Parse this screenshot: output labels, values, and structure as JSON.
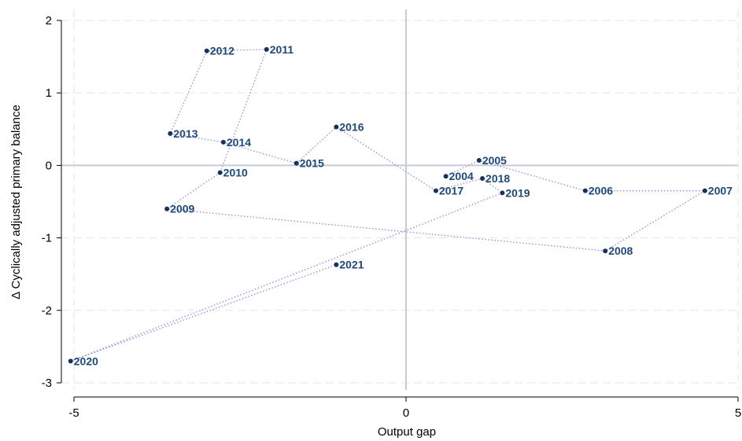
{
  "chart_data": {
    "type": "scatter",
    "connected": true,
    "title": "",
    "xlabel": "Output gap",
    "ylabel": "Δ Cyclically adjusted primary balance",
    "xlim": [
      -5,
      5
    ],
    "ylim": [
      -3,
      2
    ],
    "xticks": [
      -5,
      0,
      5
    ],
    "xtick_labels": [
      "-5",
      "0",
      "5"
    ],
    "yticks": [
      -3,
      -2,
      -1,
      0,
      1,
      2
    ],
    "ytick_labels": [
      "-3",
      "-2",
      "-1",
      "0",
      "1",
      "2"
    ],
    "grid": true,
    "reference_lines": {
      "x": 0,
      "y": 0
    },
    "colors": {
      "marker": "#1a2f5a",
      "label": "#1e4a7a",
      "connector": "#8c8ce6",
      "grid": "#e6e6e6",
      "reference": "#c5cdd9"
    },
    "points": [
      {
        "label": "2004",
        "x": 0.6,
        "y": -0.15
      },
      {
        "label": "2005",
        "x": 1.1,
        "y": 0.07
      },
      {
        "label": "2006",
        "x": 2.7,
        "y": -0.35
      },
      {
        "label": "2007",
        "x": 4.5,
        "y": -0.35
      },
      {
        "label": "2008",
        "x": 3.0,
        "y": -1.18
      },
      {
        "label": "2009",
        "x": -3.6,
        "y": -0.6
      },
      {
        "label": "2010",
        "x": -2.8,
        "y": -0.1
      },
      {
        "label": "2011",
        "x": -2.1,
        "y": 1.6
      },
      {
        "label": "2012",
        "x": -3.0,
        "y": 1.58
      },
      {
        "label": "2013",
        "x": -3.55,
        "y": 0.44
      },
      {
        "label": "2014",
        "x": -2.75,
        "y": 0.32
      },
      {
        "label": "2015",
        "x": -1.65,
        "y": 0.03
      },
      {
        "label": "2016",
        "x": -1.05,
        "y": 0.53
      },
      {
        "label": "2017",
        "x": 0.45,
        "y": -0.35
      },
      {
        "label": "2018",
        "x": 1.15,
        "y": -0.18
      },
      {
        "label": "2019",
        "x": 1.45,
        "y": -0.38
      },
      {
        "label": "2020",
        "x": -5.05,
        "y": -2.7
      },
      {
        "label": "2021",
        "x": -1.05,
        "y": -1.37
      }
    ]
  }
}
